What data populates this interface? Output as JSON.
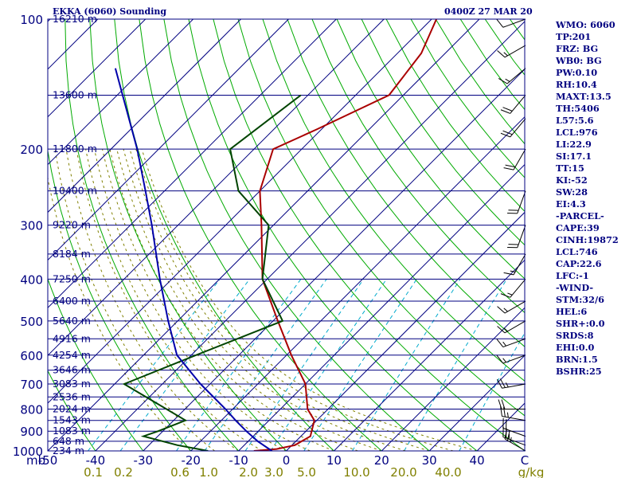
{
  "header": {
    "station_title": "EKKA (6060) Sounding",
    "time_title": "0400Z 27 MAR 20"
  },
  "indices": [
    "WMO: 6060",
    "TP:201",
    "FRZ: BG",
    "WB0: BG",
    "PW:0.10",
    "RH:10.4",
    "MAXT:13.5",
    "TH:5406",
    "L57:5.6",
    "LCL:976",
    "LI:22.9",
    "SI:17.1",
    "TT:15",
    "KI:-52",
    "SW:28",
    "EI:4.3",
    "-PARCEL-",
    "CAPE:39",
    "CINH:19872",
    "LCL:746",
    "CAP:22.6",
    "LFC:-1",
    "-WIND-",
    "STM:32/6",
    "HEL:6",
    "SHR+:0.0",
    "SRDS:8",
    "EHI:0.0",
    "BRN:1.5",
    "BSHR:25"
  ],
  "colors": {
    "isobar": "#000080",
    "isotherm": "#000080",
    "dry_adiabat": "#00aa00",
    "moist_adiabat": "#808000",
    "mixing_ratio": "#00aacc",
    "temperature": "#aa0000",
    "dewpoint": "#004400",
    "parcel": "#0000aa",
    "label": "#000080",
    "mixing_label": "#808000",
    "barb": "#000000"
  },
  "chart_data": {
    "type": "line",
    "title": "EKKA (6060) Sounding",
    "xlabel": "",
    "ylabel": "mb",
    "xlim": [
      -50,
      50
    ],
    "ylim": [
      1000,
      100
    ],
    "y_scale": "log",
    "skew": true,
    "grid": true,
    "pressure_ticks": [
      "100",
      "200",
      "300",
      "400",
      "500",
      "600",
      "700",
      "800",
      "900",
      "1000"
    ],
    "temperature_ticks": [
      "-50",
      "-40",
      "-30",
      "-20",
      "-10",
      "0",
      "10",
      "20",
      "30",
      "40",
      "C"
    ],
    "mixing_ratio_ticks": [
      "0.1",
      "0.2",
      "0.6",
      "1.0",
      "2.0",
      "3.0",
      "5.0",
      "10.0",
      "20.0",
      "40.0",
      "g/kg"
    ],
    "height_labels": [
      {
        "p": 100,
        "label": "16210 m"
      },
      {
        "p": 150,
        "label": "13600 m"
      },
      {
        "p": 200,
        "label": "11800 m"
      },
      {
        "p": 250,
        "label": "10400 m"
      },
      {
        "p": 300,
        "label": "9220 m"
      },
      {
        "p": 350,
        "label": "8184 m"
      },
      {
        "p": 400,
        "label": "7250 m"
      },
      {
        "p": 450,
        "label": "6400 m"
      },
      {
        "p": 500,
        "label": "5640 m"
      },
      {
        "p": 550,
        "label": "4916 m"
      },
      {
        "p": 600,
        "label": "4254 m"
      },
      {
        "p": 650,
        "label": "3646 m"
      },
      {
        "p": 700,
        "label": "3083 m"
      },
      {
        "p": 750,
        "label": "2536 m"
      },
      {
        "p": 800,
        "label": "2024 m"
      },
      {
        "p": 850,
        "label": "1543 m"
      },
      {
        "p": 900,
        "label": "1083 m"
      },
      {
        "p": 950,
        "label": "648 m"
      },
      {
        "p": 1000,
        "label": "234 m"
      }
    ],
    "series": [
      {
        "name": "Temperature",
        "points": [
          [
            1000,
            -6.8
          ],
          [
            990,
            -2.4
          ],
          [
            970,
            0.6
          ],
          [
            925,
            2.0
          ],
          [
            850,
            -0.5
          ],
          [
            800,
            -4.3
          ],
          [
            700,
            -10.0
          ],
          [
            600,
            -19.0
          ],
          [
            500,
            -29.0
          ],
          [
            400,
            -41.0
          ],
          [
            300,
            -52.5
          ],
          [
            250,
            -60.0
          ],
          [
            200,
            -66.0
          ],
          [
            180,
            -61.0
          ],
          [
            150,
            -53.0
          ],
          [
            120,
            -55.0
          ],
          [
            100,
            -59.0
          ]
        ]
      },
      {
        "name": "Dewpoint",
        "points": [
          [
            1000,
            -16.4
          ],
          [
            970,
            -24.0
          ],
          [
            925,
            -33.0
          ],
          [
            900,
            -31.0
          ],
          [
            850,
            -27.5
          ],
          [
            700,
            -48.0
          ],
          [
            600,
            -39.0
          ],
          [
            500,
            -28.0
          ],
          [
            400,
            -41.0
          ],
          [
            300,
            -51.0
          ],
          [
            250,
            -64.5
          ],
          [
            200,
            -75.0
          ],
          [
            150,
            -71.5
          ]
        ]
      },
      {
        "name": "Parcel",
        "points": [
          [
            1000,
            -3.0
          ],
          [
            950,
            -8.0
          ],
          [
            900,
            -12.5
          ],
          [
            850,
            -17.0
          ],
          [
            800,
            -21.5
          ],
          [
            700,
            -32.0
          ],
          [
            600,
            -43.0
          ],
          [
            500,
            -52.0
          ],
          [
            400,
            -62.5
          ],
          [
            300,
            -75.5
          ],
          [
            250,
            -84.0
          ],
          [
            200,
            -94.5
          ],
          [
            130,
            -116.0
          ]
        ]
      }
    ],
    "wind_barbs": [
      {
        "p": 1000,
        "dir": 300,
        "speed": 25
      },
      {
        "p": 970,
        "dir": 290,
        "speed": 25
      },
      {
        "p": 925,
        "dir": 290,
        "speed": 20
      },
      {
        "p": 850,
        "dir": 280,
        "speed": 25
      },
      {
        "p": 800,
        "dir": 270,
        "speed": 20
      },
      {
        "p": 700,
        "dir": 260,
        "speed": 25
      },
      {
        "p": 600,
        "dir": 250,
        "speed": 15
      },
      {
        "p": 550,
        "dir": 250,
        "speed": 15
      },
      {
        "p": 500,
        "dir": 240,
        "speed": 15
      },
      {
        "p": 450,
        "dir": 240,
        "speed": 15
      },
      {
        "p": 400,
        "dir": 220,
        "speed": 15
      },
      {
        "p": 350,
        "dir": 210,
        "speed": 15
      },
      {
        "p": 300,
        "dir": 200,
        "speed": 20
      },
      {
        "p": 250,
        "dir": 200,
        "speed": 20
      },
      {
        "p": 200,
        "dir": 210,
        "speed": 20
      },
      {
        "p": 170,
        "dir": 220,
        "speed": 20
      },
      {
        "p": 150,
        "dir": 220,
        "speed": 20
      },
      {
        "p": 130,
        "dir": 230,
        "speed": 15
      },
      {
        "p": 115,
        "dir": 240,
        "speed": 15
      },
      {
        "p": 100,
        "dir": 250,
        "speed": 10
      }
    ]
  }
}
